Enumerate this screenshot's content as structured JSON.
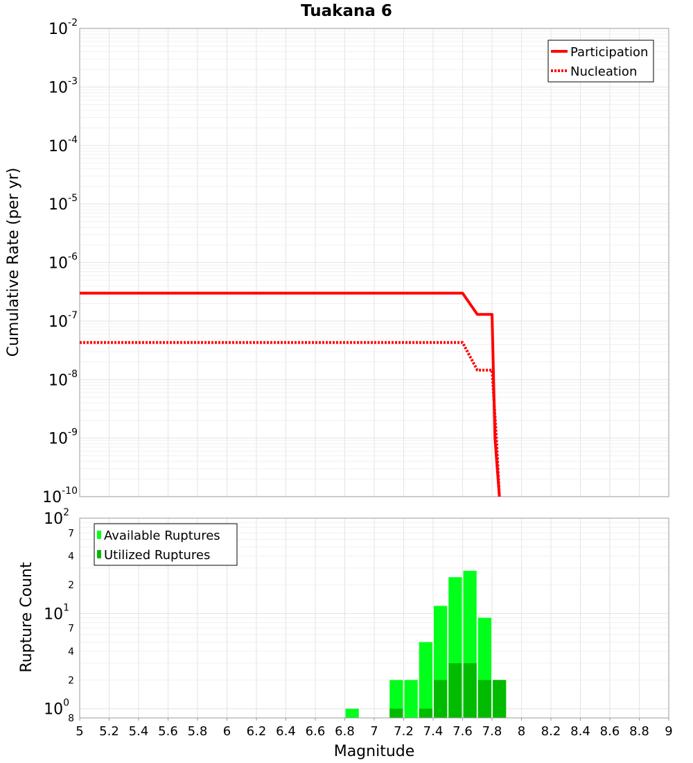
{
  "chart_data": [
    {
      "type": "line",
      "title": "Tuakana 6",
      "xlabel": "Magnitude",
      "ylabel": "Cumulative Rate (per yr)",
      "yscale": "log",
      "xlim": [
        5,
        9
      ],
      "ylim": [
        1e-10,
        0.01
      ],
      "y_ticks": [
        {
          "base": "10",
          "exp": "-2",
          "value": 0.01
        },
        {
          "base": "10",
          "exp": "-3",
          "value": 0.001
        },
        {
          "base": "10",
          "exp": "-4",
          "value": 0.0001
        },
        {
          "base": "10",
          "exp": "-5",
          "value": 1e-05
        },
        {
          "base": "10",
          "exp": "-6",
          "value": 1e-06
        },
        {
          "base": "10",
          "exp": "-7",
          "value": 1e-07
        },
        {
          "base": "10",
          "exp": "-8",
          "value": 1e-08
        },
        {
          "base": "10",
          "exp": "-9",
          "value": 1e-09
        },
        {
          "base": "10",
          "exp": "-10",
          "value": 1e-10
        }
      ],
      "legend_position": "top-right",
      "series": [
        {
          "name": "Participation",
          "style": "solid",
          "color": "#ff0000",
          "x": [
            5.0,
            7.6,
            7.7,
            7.8,
            7.82,
            7.85
          ],
          "y": [
            3e-07,
            3e-07,
            1.3e-07,
            1.3e-07,
            1e-09,
            1e-10
          ]
        },
        {
          "name": "Nucleation",
          "style": "dotted",
          "color": "#ff0000",
          "x": [
            5.0,
            7.6,
            7.7,
            7.8,
            7.83,
            7.85
          ],
          "y": [
            4.3e-08,
            4.3e-08,
            1.45e-08,
            1.45e-08,
            1e-09,
            1e-10
          ]
        }
      ]
    },
    {
      "type": "bar",
      "xlabel": "Magnitude",
      "ylabel": "Rupture Count",
      "yscale": "log",
      "xlim": [
        5,
        9
      ],
      "ylim": [
        0.8,
        100
      ],
      "x_ticks": [
        "5",
        "5.2",
        "5.4",
        "5.6",
        "5.8",
        "6",
        "6.2",
        "6.4",
        "6.6",
        "6.8",
        "7",
        "7.2",
        "7.4",
        "7.6",
        "7.8",
        "8",
        "8.2",
        "8.4",
        "8.6",
        "8.8",
        "9"
      ],
      "y_major_ticks": [
        {
          "base": "10",
          "exp": "2",
          "value": 100
        },
        {
          "base": "10",
          "exp": "1",
          "value": 10
        },
        {
          "base": "10",
          "exp": "0",
          "value": 1
        }
      ],
      "y_minor_ticks": [
        {
          "label": "7",
          "value": 70
        },
        {
          "label": "4",
          "value": 40
        },
        {
          "label": "2",
          "value": 20
        },
        {
          "label": "7",
          "value": 7
        },
        {
          "label": "4",
          "value": 4
        },
        {
          "label": "2",
          "value": 2
        },
        {
          "label": "8",
          "value": 0.8
        }
      ],
      "bin_width": 0.1,
      "legend_position": "top-left",
      "series": [
        {
          "name": "Available Ruptures",
          "color": "#00ff1a",
          "x": [
            6.85,
            7.15,
            7.25,
            7.35,
            7.45,
            7.55,
            7.65,
            7.75,
            7.85
          ],
          "values": [
            1,
            2,
            2,
            5,
            12,
            24,
            28,
            9,
            2
          ]
        },
        {
          "name": "Utilized Ruptures",
          "color": "#00bb00",
          "x": [
            7.15,
            7.35,
            7.45,
            7.55,
            7.65,
            7.75,
            7.85
          ],
          "values": [
            1,
            1,
            2,
            3,
            3,
            2,
            2
          ]
        }
      ]
    }
  ]
}
